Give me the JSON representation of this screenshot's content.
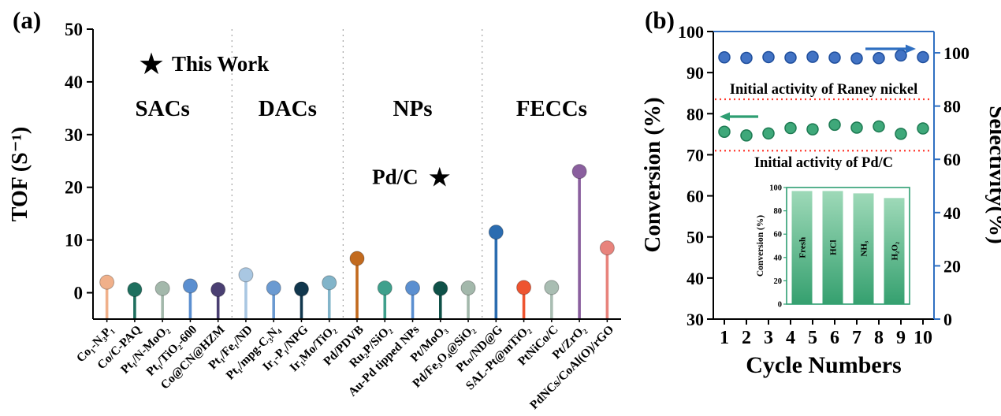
{
  "figure": {
    "panel_a_label": "(a)",
    "panel_b_label": "(b)"
  },
  "chart_data": [
    {
      "id": "panel_a",
      "type": "lollipop",
      "ylabel": "TOF (S⁻¹)",
      "ylim": [
        -5,
        50
      ],
      "yticks": [
        0,
        10,
        20,
        30,
        40,
        50
      ],
      "legend": {
        "symbol": "★",
        "label": "This Work",
        "color": "#f0452a"
      },
      "annotation": {
        "text": "Pd/C",
        "symbol": "★",
        "x_index": 11.6,
        "y_value": 22
      },
      "groups": [
        {
          "label": "SACs",
          "count": 5
        },
        {
          "label": "DACs",
          "count": 4
        },
        {
          "label": "NPs",
          "count": 5
        },
        {
          "label": "FECCs",
          "count": 5
        }
      ],
      "categories": [
        "Co₁-N₃P₁",
        "Co/C-PAQ",
        "Pt₁/N-MoO₂",
        "Pt₁/TiO₂-600",
        "Co@CN@HZM",
        "Pt₁/Fe₁/ND",
        "Pt₁/mpg-C₃N₄",
        "Ir₁-P₁/NPG",
        "Ir₁Mo/TiO₂",
        "Pd/PDVB",
        "Ru₂P/SiO₂",
        "Au-Pd tipped NPs",
        "Pt/MoO₃",
        "Pd/Fe₃O₄@SiO₂",
        "Ptₙ/ND@G",
        "SAL-Pt@mTiO₂",
        "PtNiCo/C",
        "Pt/ZrO₂",
        "PdNCs/CoAl(O)/rGO"
      ],
      "values": [
        2.0,
        0.6,
        0.8,
        1.3,
        0.6,
        3.4,
        0.9,
        0.7,
        1.9,
        6.5,
        0.9,
        0.9,
        0.8,
        0.9,
        11.5,
        1.0,
        1.0,
        23.0,
        8.5
      ],
      "colors": [
        "#f0b08a",
        "#1e6f5e",
        "#a3b8ab",
        "#5b8fd0",
        "#4a3f72",
        "#a9c7e2",
        "#6b9ad1",
        "#11374d",
        "#82b4c9",
        "#c26a1e",
        "#3fa08c",
        "#5b8fd0",
        "#0f5148",
        "#a3b8ab",
        "#2b6cb0",
        "#ee5430",
        "#a9bdb2",
        "#8a5f9e",
        "#e8837c"
      ]
    },
    {
      "id": "panel_b",
      "type": "scatter",
      "xlabel": "Cycle Numbers",
      "ylabel_left": "Conversion (%)",
      "ylabel_right": "Selectivity(%)",
      "ylim_left": [
        30,
        100
      ],
      "yticks_left": [
        30,
        40,
        50,
        60,
        70,
        80,
        90,
        100
      ],
      "ylim_right": [
        0,
        108
      ],
      "yticks_right": [
        0,
        20,
        40,
        60,
        80,
        100
      ],
      "x": [
        1,
        2,
        3,
        4,
        5,
        6,
        7,
        8,
        9,
        10
      ],
      "series": [
        {
          "name": "Conversion",
          "axis": "left",
          "color": "#3fa87a",
          "edge": "#1d7a52",
          "values": [
            75.6,
            74.7,
            75.2,
            76.5,
            76.2,
            77.3,
            76.6,
            76.9,
            75.1,
            76.4
          ]
        },
        {
          "name": "Selectivity",
          "axis": "right",
          "color": "#4273c4",
          "edge": "#1f4e9c",
          "values": [
            98.3,
            98.1,
            98.4,
            98.2,
            98.5,
            98.2,
            97.9,
            98.0,
            99.0,
            98.4
          ]
        }
      ],
      "reference_lines": [
        {
          "label": "Initial activity of Raney nickel",
          "value": 83.5,
          "axis": "left",
          "color": "#ff3b30",
          "label_position": "above"
        },
        {
          "label": "Initial activity of Pd/C",
          "value": 71,
          "axis": "left",
          "color": "#ff3b30",
          "label_position": "below"
        }
      ],
      "left_color": "#000000",
      "right_color": "#2f6fc1"
    },
    {
      "id": "inset",
      "type": "bar",
      "ylabel": "Conversion (%)",
      "ylim": [
        0,
        100
      ],
      "yticks": [
        0,
        20,
        40,
        60,
        80,
        100
      ],
      "categories": [
        "Fresh",
        "HCl",
        "NH₃",
        "H₂O₂"
      ],
      "values": [
        97,
        97,
        95,
        91
      ],
      "bar_color_top": "#9ed9b8",
      "bar_color_bottom": "#35a06f",
      "frame_color": "#2e9e72"
    }
  ]
}
